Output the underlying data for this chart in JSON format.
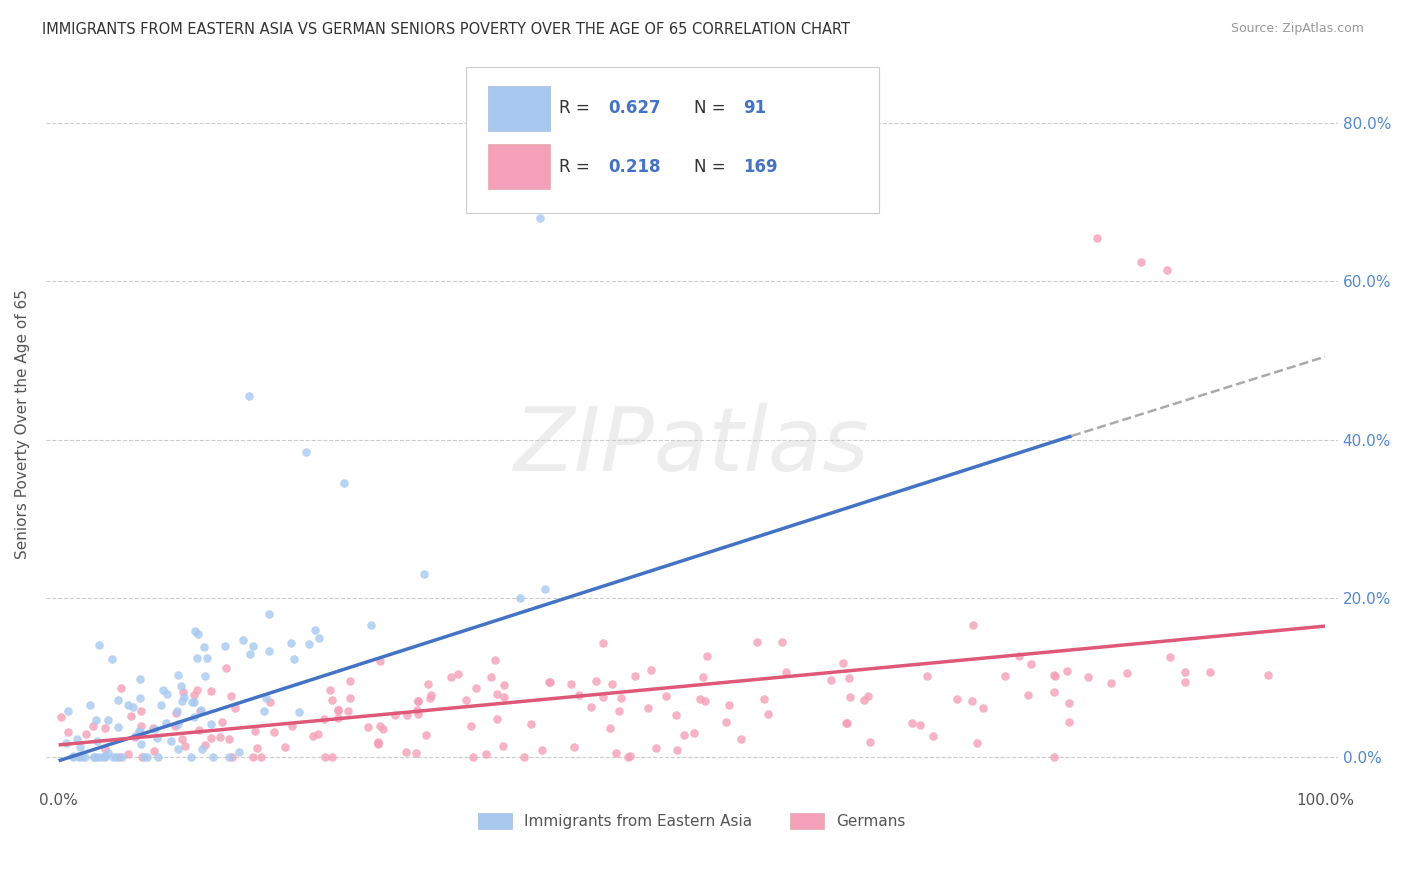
{
  "title": "IMMIGRANTS FROM EASTERN ASIA VS GERMAN SENIORS POVERTY OVER THE AGE OF 65 CORRELATION CHART",
  "source": "Source: ZipAtlas.com",
  "ylabel": "Seniors Poverty Over the Age of 65",
  "ytick_vals": [
    0.0,
    0.2,
    0.4,
    0.6,
    0.8
  ],
  "ytick_labels": [
    "0.0%",
    "20.0%",
    "40.0%",
    "60.0%",
    "80.0%"
  ],
  "xrange": [
    -0.01,
    1.01
  ],
  "yrange": [
    -0.04,
    0.88
  ],
  "legend_label_blue": "Immigrants from Eastern Asia",
  "legend_label_pink": "Germans",
  "color_blue": "#A8C8F0",
  "color_pink": "#F4A0B8",
  "line_blue": "#4472C4",
  "line_pink": "#E05878",
  "line_dashed_color": "#AAAAAA",
  "background_color": "#FFFFFF",
  "grid_color": "#CCCCCC",
  "watermark_text": "ZIPatlas",
  "watermark_color": "#CCCCCC",
  "seed": 42,
  "n_blue": 91,
  "n_pink": 169,
  "R_blue": 0.627,
  "R_pink": 0.218,
  "blue_line_x0": 0.0,
  "blue_line_y0": -0.005,
  "blue_line_x1": 0.8,
  "blue_line_y1": 0.405,
  "dashed_line_x0": 0.8,
  "dashed_line_y0": 0.405,
  "dashed_line_x1": 1.0,
  "dashed_line_y1": 0.505,
  "pink_line_x0": 0.0,
  "pink_line_y0": 0.015,
  "pink_line_x1": 1.0,
  "pink_line_y1": 0.165
}
